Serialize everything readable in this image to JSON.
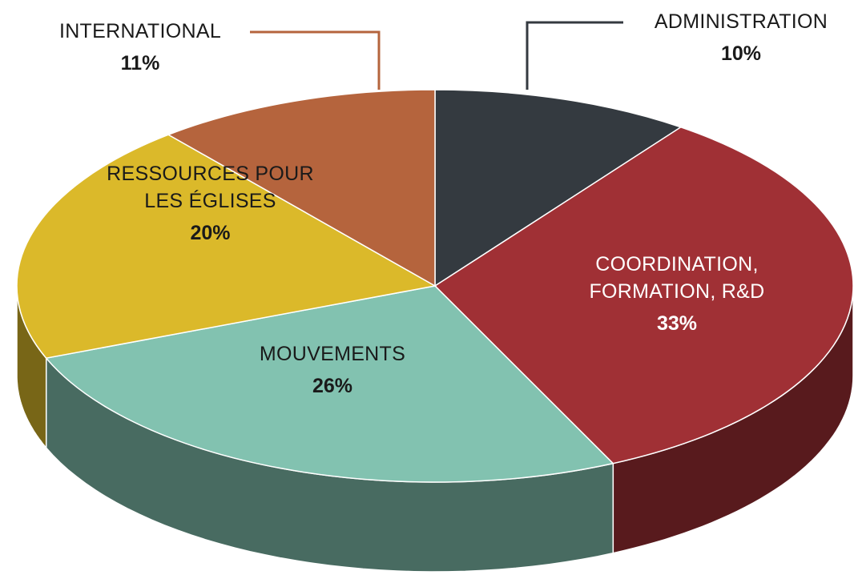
{
  "chart_data": {
    "type": "pie",
    "categories": [
      "ADMINISTRATION",
      "COORDINATION, FORMATION, R&D",
      "MOUVEMENTS",
      "RESSOURCES POUR LES ÉGLISES",
      "INTERNATIONAL"
    ],
    "values": [
      10,
      33,
      26,
      20,
      11
    ],
    "value_labels": [
      "10%",
      "33%",
      "26%",
      "20%",
      "11%"
    ],
    "colors": [
      "#343a40",
      "#a03035",
      "#82c2b0",
      "#dbb92a",
      "#b5643d"
    ],
    "three_d": true
  }
}
